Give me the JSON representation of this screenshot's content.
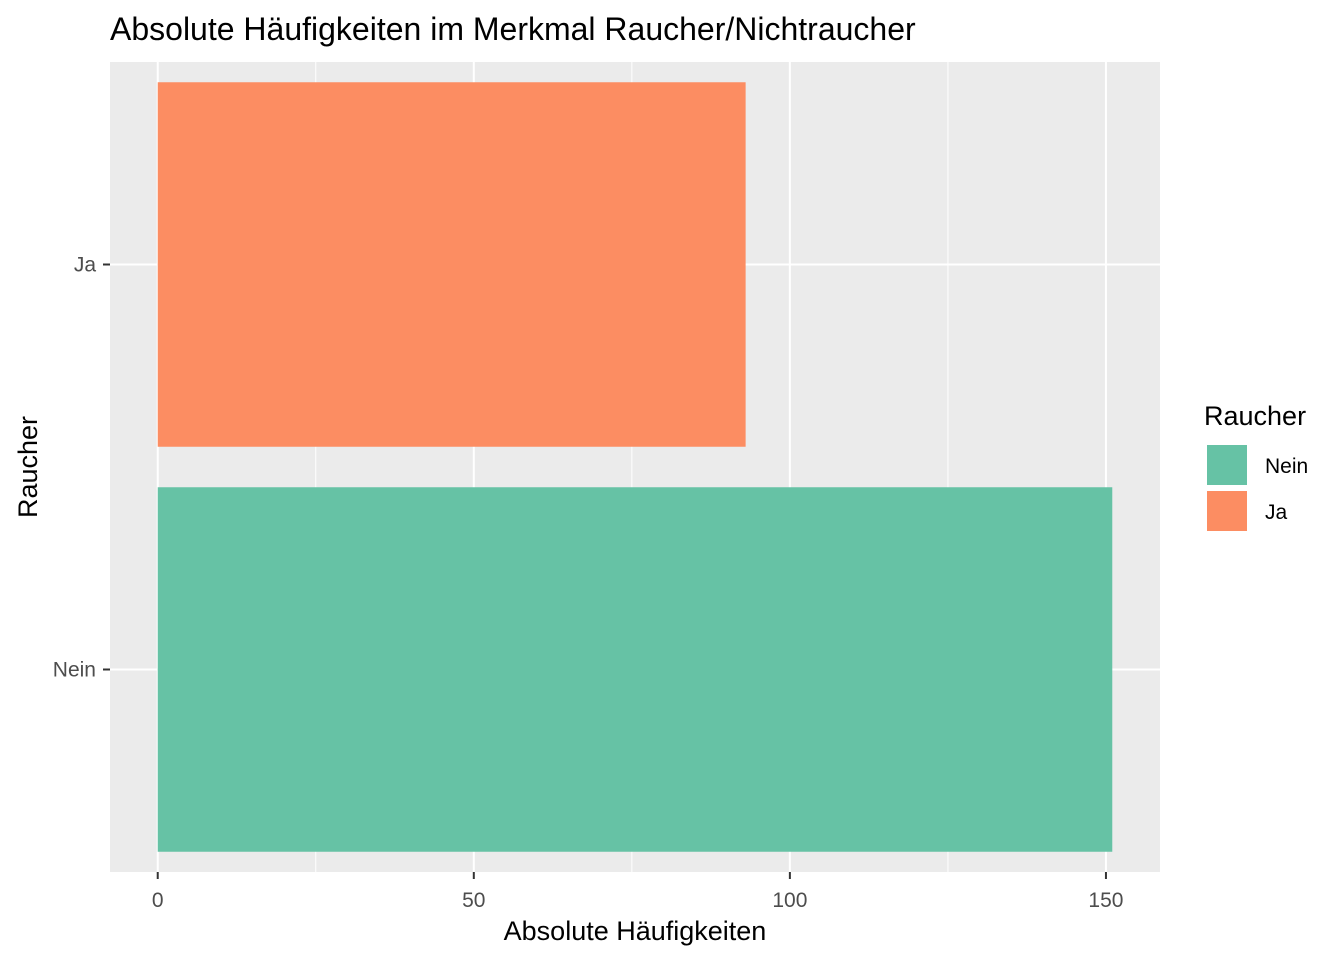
{
  "chart_data": {
    "type": "bar",
    "orientation": "horizontal",
    "title": "Absolute Häufigkeiten im Merkmal Raucher/Nichtraucher",
    "xlabel": "Absolute Häufigkeiten",
    "ylabel": "Raucher",
    "categories": [
      "Nein",
      "Ja"
    ],
    "values": [
      151,
      93
    ],
    "xlim": [
      -7.55,
      158.55
    ],
    "x_ticks": [
      0,
      50,
      100,
      150
    ],
    "x_tick_labels": [
      "0",
      "50",
      "100",
      "150"
    ],
    "grid": true,
    "background": "#ebebeb",
    "colors": {
      "Nein": "#66c2a5",
      "Ja": "#fc8d62"
    },
    "legend": {
      "title": "Raucher",
      "position": "right",
      "entries": [
        {
          "label": "Nein",
          "color": "#66c2a5"
        },
        {
          "label": "Ja",
          "color": "#fc8d62"
        }
      ]
    }
  }
}
